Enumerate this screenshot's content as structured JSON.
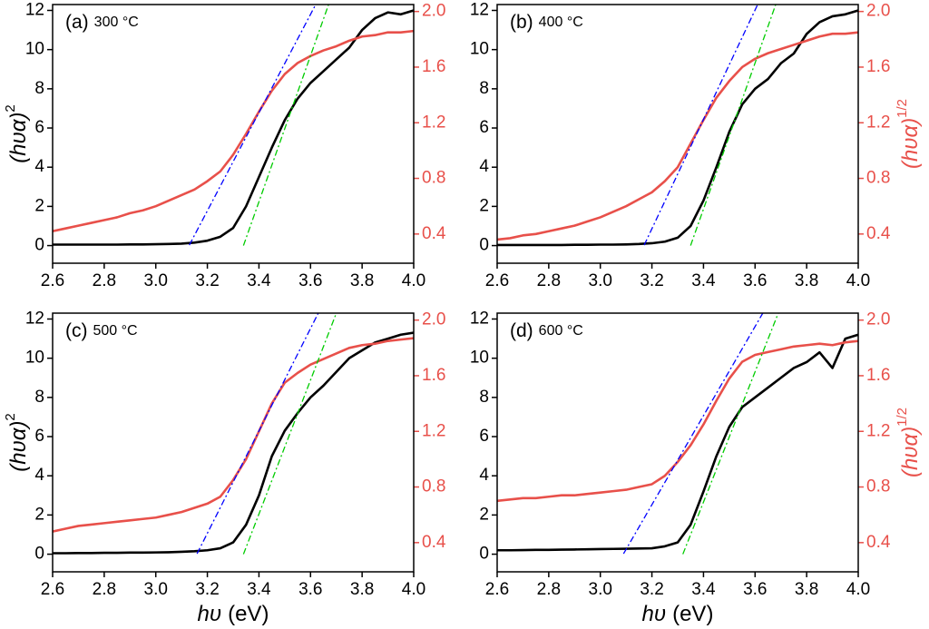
{
  "chart_data": [
    {
      "type": "line",
      "label": "(a)",
      "annotation": "300 °C",
      "ylabel": "(hυα)",
      "ylabel_sup": "2",
      "y2color": "#e8504a",
      "xlim": [
        2.6,
        4.0
      ],
      "xticks": [
        2.6,
        2.8,
        {
          "value": 3,
          "label": "3.0"
        },
        3.2,
        3.4,
        3.6,
        3.8,
        {
          "value": 4,
          "label": "4.0"
        }
      ],
      "ylim": [
        -0.9,
        12.3
      ],
      "yticks": [
        0,
        2,
        4,
        6,
        8,
        10,
        12
      ],
      "y2lim": [
        0.19,
        2.05
      ],
      "y2ticks": [
        0.4,
        0.8,
        1.2,
        1.6,
        {
          "value": 2,
          "label": "2.0"
        }
      ],
      "x": [
        2.6,
        2.65,
        2.7,
        2.75,
        2.8,
        2.85,
        2.9,
        2.95,
        3.0,
        3.05,
        3.1,
        3.15,
        3.2,
        3.25,
        3.3,
        3.35,
        3.4,
        3.45,
        3.5,
        3.55,
        3.6,
        3.65,
        3.7,
        3.75,
        3.8,
        3.85,
        3.9,
        3.95,
        4.0
      ],
      "series": [
        {
          "color": "#000000",
          "values": [
            0.05,
            0.05,
            0.05,
            0.05,
            0.05,
            0.05,
            0.06,
            0.06,
            0.07,
            0.08,
            0.1,
            0.15,
            0.25,
            0.45,
            0.9,
            2.0,
            3.5,
            5.0,
            6.4,
            7.5,
            8.3,
            8.9,
            9.5,
            10.1,
            11.0,
            11.6,
            11.9,
            11.8,
            12.0
          ]
        },
        {
          "color": "#e8504a",
          "axis": "y2",
          "values": [
            0.42,
            0.44,
            0.46,
            0.48,
            0.5,
            0.52,
            0.55,
            0.57,
            0.6,
            0.64,
            0.68,
            0.72,
            0.78,
            0.85,
            0.97,
            1.12,
            1.28,
            1.43,
            1.55,
            1.63,
            1.68,
            1.72,
            1.75,
            1.79,
            1.82,
            1.83,
            1.85,
            1.85,
            1.86
          ]
        },
        {
          "color": "#0000ff",
          "dash": "dash-dot",
          "axis": "y2",
          "x": [
            3.13,
            3.62
          ],
          "values": [
            0.32,
            2.05
          ]
        },
        {
          "color": "#00cc00",
          "dash": "dash-dot",
          "x": [
            3.34,
            3.67
          ],
          "values": [
            0,
            12.3
          ]
        }
      ]
    },
    {
      "type": "line",
      "label": "(b)",
      "annotation": "400 °C",
      "y2label": "(hυα)",
      "y2label_sup": "1/2",
      "y2color": "#e8504a",
      "xlim": [
        2.6,
        4.0
      ],
      "xticks": [
        2.6,
        2.8,
        {
          "value": 3,
          "label": "3.0"
        },
        3.2,
        3.4,
        3.6,
        3.8,
        {
          "value": 4,
          "label": "4.0"
        }
      ],
      "ylim": [
        -0.9,
        12.3
      ],
      "yticks": [
        0,
        2,
        4,
        6,
        8,
        10,
        12
      ],
      "y2lim": [
        0.19,
        2.05
      ],
      "y2ticks": [
        0.4,
        0.8,
        1.2,
        1.6,
        {
          "value": 2,
          "label": "2.0"
        }
      ],
      "x": [
        2.6,
        2.65,
        2.7,
        2.75,
        2.8,
        2.85,
        2.9,
        2.95,
        3.0,
        3.05,
        3.1,
        3.15,
        3.2,
        3.25,
        3.3,
        3.35,
        3.4,
        3.45,
        3.5,
        3.55,
        3.6,
        3.65,
        3.7,
        3.75,
        3.8,
        3.85,
        3.9,
        3.95,
        4.0
      ],
      "series": [
        {
          "color": "#000000",
          "values": [
            0.03,
            0.03,
            0.03,
            0.03,
            0.03,
            0.03,
            0.04,
            0.04,
            0.05,
            0.05,
            0.06,
            0.08,
            0.12,
            0.2,
            0.4,
            1.0,
            2.3,
            4.0,
            5.8,
            7.2,
            8.0,
            8.5,
            9.3,
            9.8,
            10.8,
            11.4,
            11.7,
            11.8,
            12.0
          ]
        },
        {
          "color": "#e8504a",
          "axis": "y2",
          "values": [
            0.36,
            0.37,
            0.39,
            0.4,
            0.42,
            0.44,
            0.46,
            0.49,
            0.52,
            0.56,
            0.6,
            0.65,
            0.7,
            0.78,
            0.88,
            1.05,
            1.22,
            1.38,
            1.5,
            1.6,
            1.66,
            1.7,
            1.73,
            1.76,
            1.79,
            1.82,
            1.84,
            1.84,
            1.85
          ]
        },
        {
          "color": "#0000ff",
          "dash": "dash-dot",
          "axis": "y2",
          "x": [
            3.17,
            3.61
          ],
          "values": [
            0.32,
            2.05
          ]
        },
        {
          "color": "#00cc00",
          "dash": "dash-dot",
          "x": [
            3.35,
            3.68
          ],
          "values": [
            0,
            12.3
          ]
        }
      ]
    },
    {
      "type": "line",
      "label": "(c)",
      "annotation": "500 °C",
      "ylabel": "(hυα)",
      "ylabel_sup": "2",
      "xlabel_var": "hυ",
      "xlabel_unit": "(eV)",
      "y2color": "#e8504a",
      "xlim": [
        2.6,
        4.0
      ],
      "xticks": [
        2.6,
        2.8,
        {
          "value": 3,
          "label": "3.0"
        },
        3.2,
        3.4,
        3.6,
        3.8,
        {
          "value": 4,
          "label": "4.0"
        }
      ],
      "ylim": [
        -0.9,
        12.3
      ],
      "yticks": [
        0,
        2,
        4,
        6,
        8,
        10,
        12
      ],
      "y2lim": [
        0.19,
        2.05
      ],
      "y2ticks": [
        0.4,
        0.8,
        1.2,
        1.6,
        {
          "value": 2,
          "label": "2.0"
        }
      ],
      "x": [
        2.6,
        2.65,
        2.7,
        2.75,
        2.8,
        2.85,
        2.9,
        2.95,
        3.0,
        3.05,
        3.1,
        3.15,
        3.2,
        3.25,
        3.3,
        3.35,
        3.4,
        3.45,
        3.5,
        3.55,
        3.6,
        3.65,
        3.7,
        3.75,
        3.8,
        3.85,
        3.9,
        3.95,
        4.0
      ],
      "series": [
        {
          "color": "#000000",
          "values": [
            0.05,
            0.05,
            0.06,
            0.06,
            0.07,
            0.07,
            0.08,
            0.08,
            0.09,
            0.1,
            0.12,
            0.15,
            0.2,
            0.3,
            0.6,
            1.5,
            3.0,
            5.0,
            6.3,
            7.2,
            8.0,
            8.6,
            9.3,
            10.0,
            10.4,
            10.8,
            11.0,
            11.2,
            11.3
          ]
        },
        {
          "color": "#e8504a",
          "axis": "y2",
          "values": [
            0.48,
            0.5,
            0.52,
            0.53,
            0.54,
            0.55,
            0.56,
            0.57,
            0.58,
            0.6,
            0.62,
            0.65,
            0.68,
            0.73,
            0.85,
            1.0,
            1.2,
            1.4,
            1.55,
            1.62,
            1.68,
            1.72,
            1.76,
            1.8,
            1.82,
            1.83,
            1.85,
            1.86,
            1.87
          ]
        },
        {
          "color": "#0000ff",
          "dash": "dash-dot",
          "axis": "y2",
          "x": [
            3.16,
            3.63
          ],
          "values": [
            0.32,
            2.05
          ]
        },
        {
          "color": "#00cc00",
          "dash": "dash-dot",
          "x": [
            3.34,
            3.7
          ],
          "values": [
            0,
            12.3
          ]
        }
      ]
    },
    {
      "type": "line",
      "label": "(d)",
      "annotation": "600 °C",
      "y2label": "(hυα)",
      "y2label_sup": "1/2",
      "xlabel_var": "hυ",
      "xlabel_unit": "(eV)",
      "y2color": "#e8504a",
      "xlim": [
        2.6,
        4.0
      ],
      "xticks": [
        2.6,
        2.8,
        {
          "value": 3,
          "label": "3.0"
        },
        3.2,
        3.4,
        3.6,
        3.8,
        {
          "value": 4,
          "label": "4.0"
        }
      ],
      "ylim": [
        -0.9,
        12.3
      ],
      "yticks": [
        0,
        2,
        4,
        6,
        8,
        10,
        12
      ],
      "y2lim": [
        0.19,
        2.05
      ],
      "y2ticks": [
        0.4,
        0.8,
        1.2,
        1.6,
        {
          "value": 2,
          "label": "2.0"
        }
      ],
      "x": [
        2.6,
        2.65,
        2.7,
        2.75,
        2.8,
        2.85,
        2.9,
        2.95,
        3.0,
        3.05,
        3.1,
        3.15,
        3.2,
        3.25,
        3.3,
        3.35,
        3.4,
        3.45,
        3.5,
        3.55,
        3.6,
        3.65,
        3.7,
        3.75,
        3.8,
        3.85,
        3.9,
        3.95,
        4.0
      ],
      "series": [
        {
          "color": "#000000",
          "values": [
            0.2,
            0.2,
            0.21,
            0.22,
            0.22,
            0.23,
            0.24,
            0.25,
            0.26,
            0.27,
            0.28,
            0.29,
            0.3,
            0.4,
            0.6,
            1.5,
            3.2,
            5.0,
            6.5,
            7.5,
            8.0,
            8.5,
            9.0,
            9.5,
            9.8,
            10.3,
            9.5,
            11.0,
            11.2
          ]
        },
        {
          "color": "#e8504a",
          "axis": "y2",
          "values": [
            0.7,
            0.71,
            0.72,
            0.72,
            0.73,
            0.74,
            0.74,
            0.75,
            0.76,
            0.77,
            0.78,
            0.8,
            0.82,
            0.88,
            0.98,
            1.1,
            1.25,
            1.42,
            1.58,
            1.7,
            1.75,
            1.77,
            1.79,
            1.81,
            1.82,
            1.83,
            1.82,
            1.84,
            1.85
          ]
        },
        {
          "color": "#0000ff",
          "dash": "dash-dot",
          "axis": "y2",
          "x": [
            3.09,
            3.63
          ],
          "values": [
            0.32,
            2.05
          ]
        },
        {
          "color": "#00cc00",
          "dash": "dash-dot",
          "x": [
            3.32,
            3.69
          ],
          "values": [
            0,
            12.3
          ]
        }
      ]
    }
  ]
}
